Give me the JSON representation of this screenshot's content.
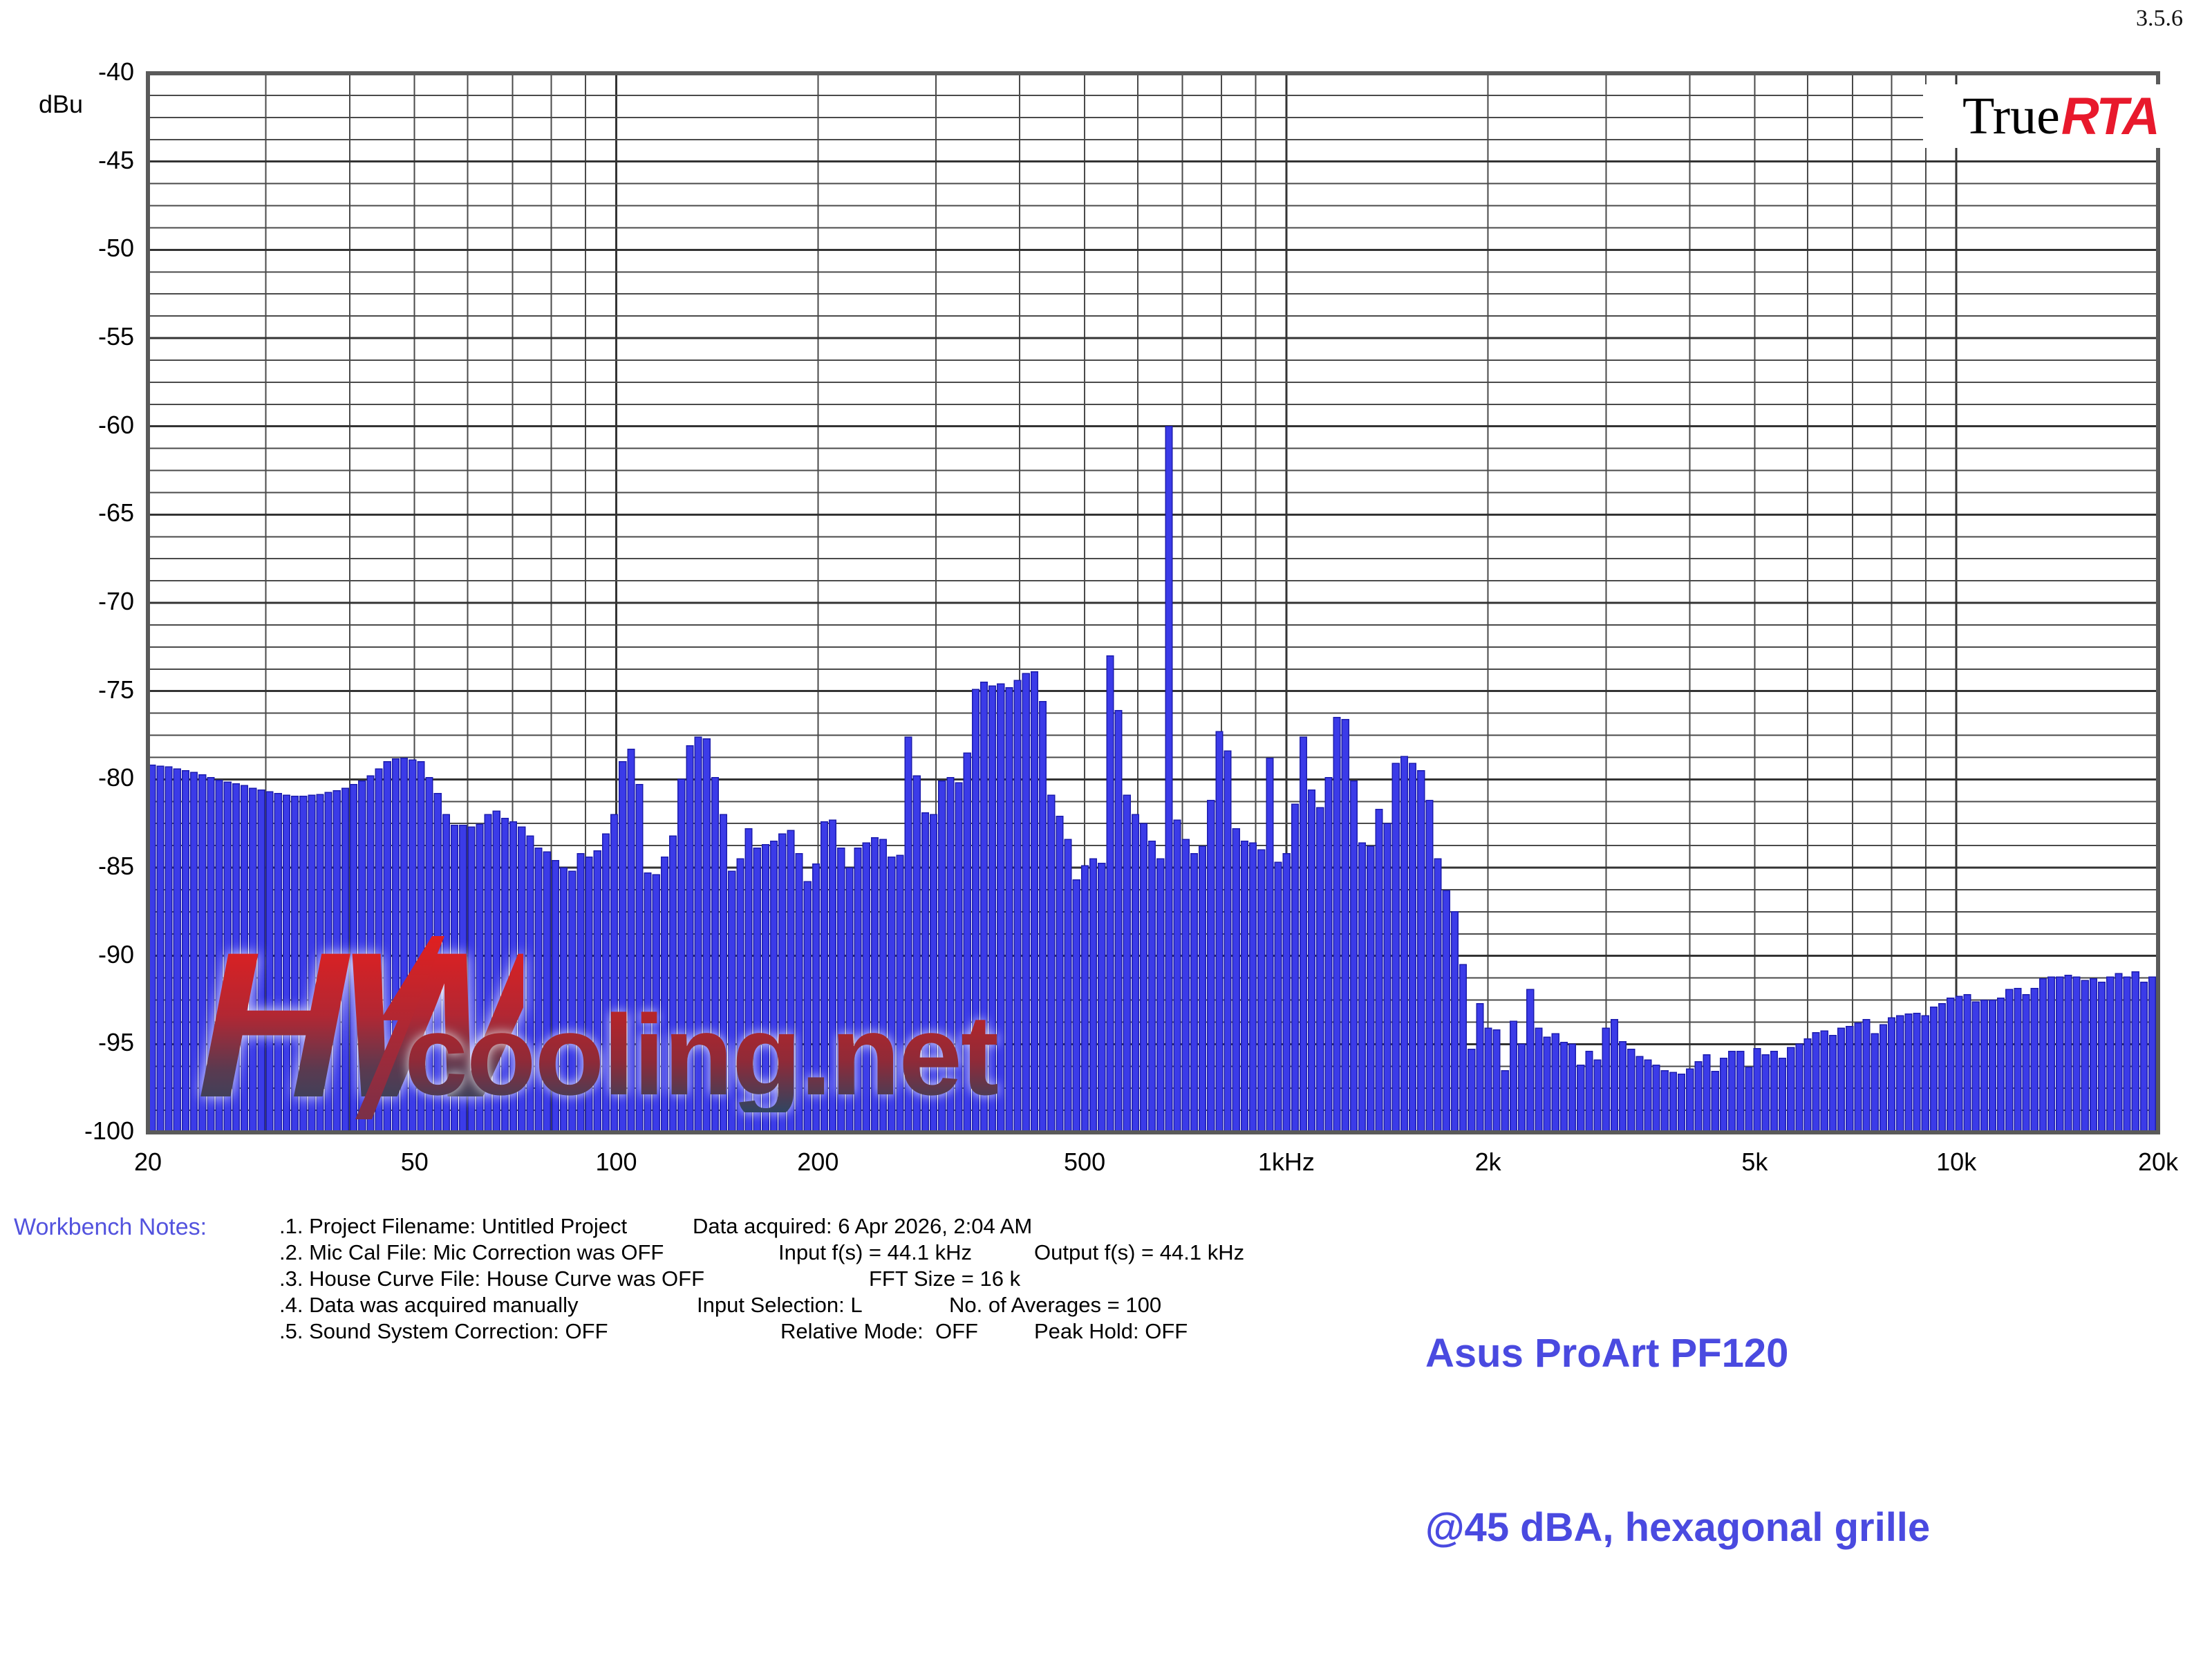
{
  "version": "3.5.6",
  "logo": {
    "true_part": "True",
    "rta_part": "RTA",
    "rta_color": "#e8192c"
  },
  "watermark": {
    "hw": "HW",
    "cooling": "cooling.net"
  },
  "axis": {
    "y_unit": "dBu",
    "y_ticks": [
      "-40",
      "-45",
      "-50",
      "-55",
      "-60",
      "-65",
      "-70",
      "-75",
      "-80",
      "-85",
      "-90",
      "-95",
      "-100"
    ],
    "x_ticks": [
      {
        "label": "20",
        "f": 20
      },
      {
        "label": "50",
        "f": 50
      },
      {
        "label": "100",
        "f": 100
      },
      {
        "label": "200",
        "f": 200
      },
      {
        "label": "500",
        "f": 500
      },
      {
        "label": "1kHz",
        "f": 1000
      },
      {
        "label": "2k",
        "f": 2000
      },
      {
        "label": "5k",
        "f": 5000
      },
      {
        "label": "10k",
        "f": 10000
      },
      {
        "label": "20k",
        "f": 20000
      }
    ]
  },
  "notes": {
    "label": "Workbench Notes:",
    "label_color": "#5353de",
    "lines": [
      {
        "y": 1756,
        "segs": [
          {
            "x": 404,
            "t": ".1. Project Filename: Untitled Project"
          },
          {
            "x": 1002,
            "t": "Data acquired: 6 Apr 2026, 2:04 AM"
          }
        ]
      },
      {
        "y": 1794,
        "segs": [
          {
            "x": 404,
            "t": ".2. Mic Cal File: Mic Correction was OFF"
          },
          {
            "x": 1126,
            "t": "Input f(s) = 44.1 kHz"
          },
          {
            "x": 1496,
            "t": "Output f(s) = 44.1 kHz"
          }
        ]
      },
      {
        "y": 1832,
        "segs": [
          {
            "x": 404,
            "t": ".3. House Curve File: House Curve was OFF"
          },
          {
            "x": 1257,
            "t": "FFT Size = 16 k"
          }
        ]
      },
      {
        "y": 1870,
        "segs": [
          {
            "x": 404,
            "t": ".4. Data was acquired manually"
          },
          {
            "x": 1008,
            "t": "Input Selection: L"
          },
          {
            "x": 1373,
            "t": "No. of Averages = 100"
          }
        ]
      },
      {
        "y": 1908,
        "segs": [
          {
            "x": 404,
            "t": ".5. Sound System Correction: OFF"
          },
          {
            "x": 1129,
            "t": "Relative Mode:  OFF"
          },
          {
            "x": 1496,
            "t": "Peak Hold: OFF"
          }
        ]
      }
    ]
  },
  "annotation": {
    "line1": "Asus ProArt PF120",
    "line2": "@45 dBA, hexagonal grille",
    "color": "#4a4ae0"
  },
  "chart_data": {
    "type": "bar",
    "title": "",
    "ylabel": "dBu",
    "x_scale": "log",
    "x_range_hz": [
      20,
      20000
    ],
    "y_range_dbu": [
      -100,
      -40
    ],
    "grid": {
      "minor_db_step": 1.25,
      "major_db_step": 5,
      "x_lines": "1-9 per decade"
    },
    "bars_per_octave": 24,
    "f_start_hz": 20,
    "bar_fill": "#3b3be8",
    "bar_stroke": "#1c1cae",
    "grid_minor_color": "#4a4a4a",
    "grid_major_color": "#333333",
    "border_color": "#5a5a5a",
    "values_dbu": [
      -79.2,
      -79.25,
      -79.3,
      -79.4,
      -79.5,
      -79.6,
      -79.75,
      -79.9,
      -80.05,
      -80.15,
      -80.25,
      -80.35,
      -80.5,
      -80.6,
      -80.7,
      -80.8,
      -80.9,
      -80.95,
      -80.95,
      -80.9,
      -80.85,
      -80.75,
      -80.65,
      -80.5,
      -80.3,
      -80.1,
      -79.8,
      -79.4,
      -79.0,
      -78.85,
      -78.8,
      -78.9,
      -79.0,
      -79.9,
      -80.8,
      -82.0,
      -82.6,
      -82.6,
      -82.7,
      -82.55,
      -82.0,
      -81.8,
      -82.2,
      -82.4,
      -82.7,
      -83.2,
      -83.9,
      -84.1,
      -84.6,
      -85.0,
      -85.2,
      -84.2,
      -84.4,
      -84.05,
      -83.1,
      -82.0,
      -79.0,
      -78.3,
      -80.3,
      -85.3,
      -85.4,
      -84.4,
      -83.2,
      -80.0,
      -78.1,
      -77.6,
      -77.7,
      -79.9,
      -82.0,
      -85.2,
      -84.5,
      -82.8,
      -83.9,
      -83.7,
      -83.5,
      -83.1,
      -82.9,
      -84.2,
      -85.8,
      -84.8,
      -82.4,
      -82.3,
      -83.9,
      -85.0,
      -83.9,
      -83.6,
      -83.3,
      -83.4,
      -84.4,
      -84.3,
      -77.6,
      -79.8,
      -81.9,
      -82.0,
      -80.1,
      -79.9,
      -80.2,
      -78.5,
      -74.9,
      -74.5,
      -74.7,
      -74.6,
      -74.8,
      -74.4,
      -74.0,
      -73.9,
      -75.6,
      -80.9,
      -82.1,
      -83.4,
      -85.7,
      -84.9,
      -84.5,
      -84.75,
      -73.0,
      -76.1,
      -80.9,
      -82.0,
      -82.5,
      -83.5,
      -84.5,
      -60.0,
      -82.3,
      -83.4,
      -84.2,
      -83.8,
      -81.2,
      -77.3,
      -78.4,
      -82.8,
      -83.5,
      -83.6,
      -84.0,
      -78.8,
      -84.7,
      -84.2,
      -81.4,
      -77.6,
      -80.6,
      -81.6,
      -79.9,
      -76.5,
      -76.6,
      -80.1,
      -83.6,
      -83.8,
      -81.7,
      -82.5,
      -79.1,
      -78.7,
      -79.1,
      -79.5,
      -81.2,
      -84.5,
      -86.3,
      -87.5,
      -90.5,
      -95.3,
      -92.7,
      -94.1,
      -94.2,
      -96.5,
      -93.7,
      -95.0,
      -91.9,
      -94.1,
      -94.6,
      -94.4,
      -94.9,
      -95.0,
      -96.2,
      -95.4,
      -95.9,
      -94.1,
      -93.6,
      -94.85,
      -95.3,
      -95.7,
      -95.9,
      -96.2,
      -96.5,
      -96.6,
      -96.7,
      -96.4,
      -96.0,
      -95.6,
      -96.55,
      -95.8,
      -95.4,
      -95.4,
      -96.3,
      -95.25,
      -95.6,
      -95.4,
      -95.8,
      -95.2,
      -95.0,
      -94.7,
      -94.35,
      -94.25,
      -94.5,
      -94.1,
      -94.0,
      -93.8,
      -93.6,
      -94.4,
      -93.9,
      -93.5,
      -93.4,
      -93.3,
      -93.25,
      -93.4,
      -92.9,
      -92.7,
      -92.4,
      -92.3,
      -92.2,
      -92.6,
      -92.5,
      -92.5,
      -92.4,
      -91.9,
      -91.85,
      -92.2,
      -91.85,
      -91.3,
      -91.2,
      -91.2,
      -91.1,
      -91.2,
      -91.4,
      -91.3,
      -91.5,
      -91.2,
      -91.0,
      -91.2,
      -90.9,
      -91.5,
      -91.2,
      -91.0
    ]
  }
}
